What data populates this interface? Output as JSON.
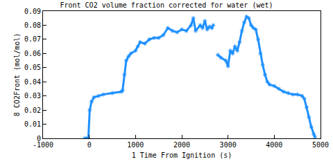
{
  "chart_data": {
    "type": "scatter",
    "title": "Front CO2 volume fraction corrected for water (wet)",
    "x_label": "1 Time From Ignition (s)",
    "y_label": "8 CO2Front (mol/mol)",
    "series": [
      {
        "color": "#1e90ff",
        "marker": "star",
        "x": [
          -100,
          -60,
          -20,
          10,
          50,
          100,
          200,
          300,
          500,
          700,
          720,
          760,
          800,
          850,
          900,
          1000,
          1050,
          1100,
          1200,
          1300,
          1400,
          1500,
          1600,
          1700,
          1800,
          1900,
          2000,
          2100,
          2200,
          2250,
          2300,
          2400,
          2450,
          2500,
          2550,
          2600,
          2650,
          2680,
          2720,
          2780,
          2850,
          2950,
          3000,
          3050,
          3100,
          3150,
          3200,
          3250,
          3300,
          3350,
          3400,
          3450,
          3500,
          3550,
          3600,
          3650,
          3700,
          3750,
          3800,
          3850,
          3900,
          4000,
          4100,
          4200,
          4300,
          4400,
          4500,
          4600,
          4650,
          4700,
          4750,
          4800,
          4850,
          4880
        ],
        "values": [
          0,
          0,
          0,
          0.02,
          0.026,
          0.029,
          0.03,
          0.031,
          0.032,
          0.033,
          0.034,
          0.045,
          0.055,
          0.058,
          0.06,
          0.062,
          0.065,
          0.068,
          0.067,
          0.07,
          0.071,
          0.071,
          0.073,
          0.078,
          0.076,
          0.075,
          0.077,
          0.076,
          0.08,
          0.085,
          0.076,
          0.08,
          0.078,
          0.083,
          0.077,
          0.079,
          0.078,
          0.08,
          null,
          0.059,
          0.057,
          0.055,
          0.051,
          0.062,
          0.06,
          0.065,
          0.062,
          0.068,
          0.076,
          0.082,
          0.086,
          0.085,
          0.08,
          0.078,
          0.077,
          0.07,
          0.06,
          0.052,
          0.045,
          0.04,
          0.038,
          0.037,
          0.035,
          0.033,
          0.032,
          0.031,
          0.031,
          0.03,
          0.028,
          0.022,
          0.015,
          0.008,
          0.003,
          0.001
        ]
      }
    ],
    "xlim": [
      -1000,
      5000
    ],
    "xticks": [
      -1000,
      0,
      1000,
      2000,
      3000,
      4000,
      5000
    ],
    "ylim": [
      0,
      0.09
    ],
    "yticks": [
      0,
      0.01,
      0.02,
      0.03,
      0.04,
      0.05,
      0.06,
      0.07,
      0.08,
      0.09
    ],
    "grid": false
  }
}
